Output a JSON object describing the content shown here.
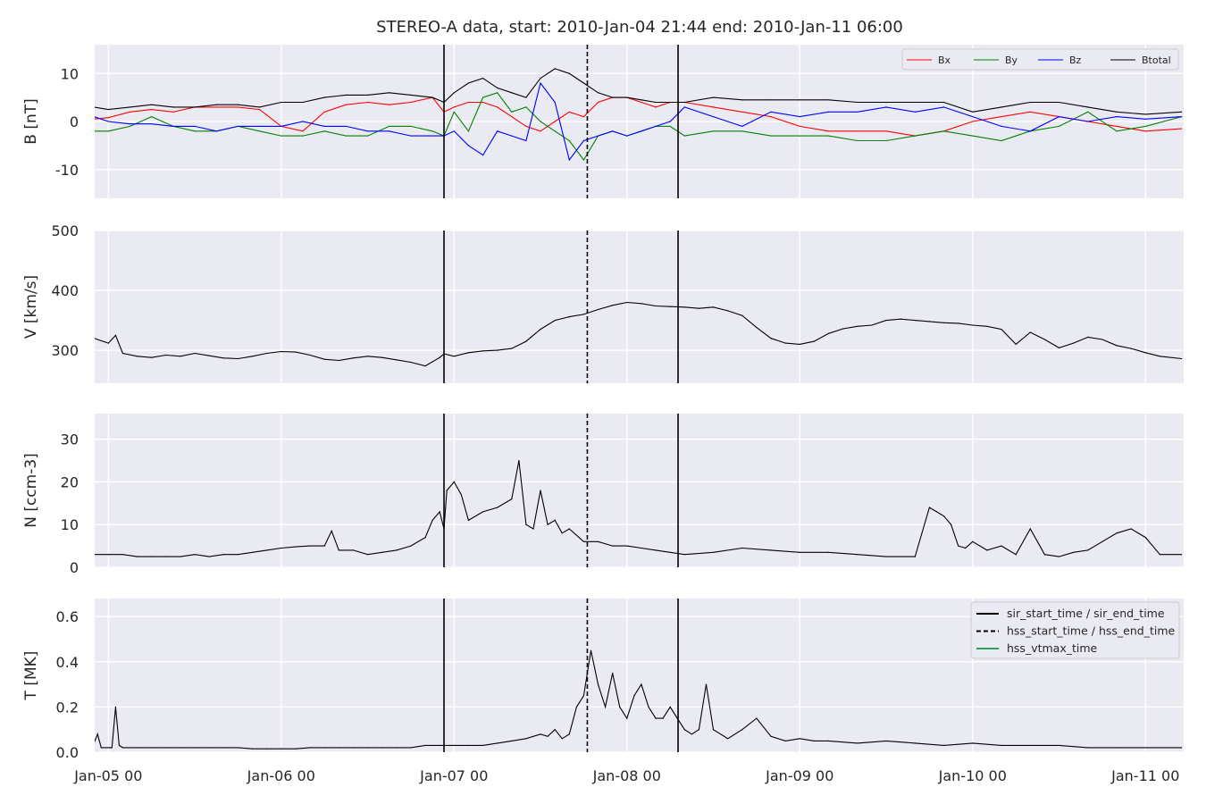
{
  "chart_data": {
    "type": "line",
    "title": "STEREO-A data, start: 2010-Jan-04 21:44  end: 2010-Jan-11 06:00",
    "x_axis": {
      "tick_labels": [
        "Jan-05 00",
        "Jan-06 00",
        "Jan-07 00",
        "Jan-08 00",
        "Jan-09 00",
        "Jan-10 00",
        "Jan-11 00"
      ],
      "tick_hours": [
        0,
        24,
        48,
        72,
        96,
        120,
        144
      ],
      "range_hours": [
        -1.9,
        149.3
      ]
    },
    "event_lines": [
      {
        "kind": "sir",
        "hour": 46.6
      },
      {
        "kind": "hss",
        "hour": 66.5
      },
      {
        "kind": "sir",
        "hour": 79.1
      }
    ],
    "panels": [
      {
        "ylabel": "B [nT]",
        "ylim": [
          -16,
          16
        ],
        "yticks": [
          -10,
          0,
          10
        ],
        "legend": {
          "placement": "upper-right",
          "entries": [
            "Bx",
            "By",
            "Bz",
            "Btotal"
          ]
        },
        "series": [
          {
            "name": "Bx",
            "color": "#ff0000",
            "x": [
              -2,
              0,
              3,
              6,
              9,
              12,
              15,
              18,
              21,
              24,
              27,
              30,
              33,
              36,
              39,
              42,
              45,
              46.6,
              48,
              50,
              52,
              54,
              56,
              58,
              60,
              62,
              64,
              66,
              68,
              70,
              72,
              74,
              76,
              78,
              80,
              84,
              88,
              92,
              96,
              100,
              104,
              108,
              112,
              116,
              120,
              124,
              128,
              132,
              136,
              140,
              144,
              149
            ],
            "y": [
              0.5,
              0.8,
              2,
              2.5,
              2,
              3,
              3,
              3,
              2.5,
              -1,
              -2,
              2,
              3.5,
              4,
              3.5,
              4,
              5,
              2,
              3,
              4,
              4,
              3,
              1,
              -1,
              -2,
              0,
              2,
              1,
              4,
              5,
              5,
              4,
              3,
              4,
              4,
              3,
              2,
              1,
              -1,
              -2,
              -2,
              -2,
              -3,
              -2,
              0,
              1,
              2,
              1,
              0,
              -1,
              -2,
              -1.5
            ]
          },
          {
            "name": "By",
            "color": "#008000",
            "x": [
              -2,
              0,
              3,
              6,
              9,
              12,
              15,
              18,
              21,
              24,
              27,
              30,
              33,
              36,
              39,
              42,
              45,
              46.6,
              48,
              50,
              52,
              54,
              56,
              58,
              60,
              62,
              64,
              66,
              68,
              70,
              72,
              74,
              76,
              78,
              80,
              84,
              88,
              92,
              96,
              100,
              104,
              108,
              112,
              116,
              120,
              124,
              128,
              132,
              136,
              140,
              144,
              149
            ],
            "y": [
              -2,
              -2,
              -1,
              1,
              -1,
              -2,
              -2,
              -1,
              -2,
              -3,
              -3,
              -2,
              -3,
              -3,
              -1,
              -1,
              -2,
              -3,
              2,
              -2,
              5,
              6,
              2,
              3,
              0,
              -2,
              -4,
              -8,
              -3,
              -2,
              -3,
              -2,
              -1,
              -1,
              -3,
              -2,
              -2,
              -3,
              -3,
              -3,
              -4,
              -4,
              -3,
              -2,
              -3,
              -4,
              -2,
              -1,
              2,
              -2,
              -1,
              1
            ]
          },
          {
            "name": "Bz",
            "color": "#0000ff",
            "x": [
              -2,
              0,
              3,
              6,
              9,
              12,
              15,
              18,
              21,
              24,
              27,
              30,
              33,
              36,
              39,
              42,
              45,
              46.6,
              48,
              50,
              52,
              54,
              56,
              58,
              60,
              62,
              64,
              66,
              68,
              70,
              72,
              74,
              76,
              78,
              80,
              84,
              88,
              92,
              96,
              100,
              104,
              108,
              112,
              116,
              120,
              124,
              128,
              132,
              136,
              140,
              144,
              149
            ],
            "y": [
              1,
              0,
              -0.5,
              -0.5,
              -1,
              -1,
              -2,
              -1,
              -1,
              -1,
              0,
              -1,
              -1,
              -2,
              -2,
              -3,
              -3,
              -3,
              -2,
              -5,
              -7,
              -2,
              -3,
              -4,
              8,
              4,
              -8,
              -4,
              -3,
              -2,
              -3,
              -2,
              -1,
              0,
              3,
              1,
              -1,
              2,
              1,
              2,
              2,
              3,
              2,
              3,
              1,
              -1,
              -2,
              1,
              0,
              1,
              0.5,
              1
            ]
          },
          {
            "name": "Btotal",
            "color": "#000000",
            "x": [
              -2,
              0,
              3,
              6,
              9,
              12,
              15,
              18,
              21,
              24,
              27,
              30,
              33,
              36,
              39,
              42,
              45,
              46.6,
              48,
              50,
              52,
              54,
              56,
              58,
              60,
              62,
              64,
              66,
              68,
              70,
              72,
              74,
              76,
              78,
              80,
              84,
              88,
              92,
              96,
              100,
              104,
              108,
              112,
              116,
              120,
              124,
              128,
              132,
              136,
              140,
              144,
              149
            ],
            "y": [
              3,
              2.5,
              3,
              3.5,
              3,
              3,
              3.5,
              3.5,
              3,
              4,
              4,
              5,
              5.5,
              5.5,
              6,
              5.5,
              5,
              4,
              6,
              8,
              9,
              7,
              6,
              5,
              9,
              11,
              10,
              8,
              6,
              5,
              5,
              4.5,
              4,
              4,
              4,
              5,
              4.5,
              4.5,
              4.5,
              4.5,
              4,
              4,
              4,
              4,
              2,
              3,
              4,
              4,
              3,
              2,
              1.5,
              2
            ]
          }
        ]
      },
      {
        "ylabel": "V [km/s]",
        "ylim": [
          245,
          500
        ],
        "yticks": [
          300,
          400,
          500
        ],
        "series": [
          {
            "name": "V",
            "color": "#000000",
            "x": [
              -2,
              0,
              1,
              2,
              4,
              6,
              8,
              10,
              12,
              14,
              16,
              18,
              20,
              22,
              24,
              26,
              28,
              30,
              32,
              34,
              36,
              38,
              40,
              42,
              44,
              46,
              46.6,
              48,
              50,
              52,
              54,
              56,
              58,
              60,
              62,
              64,
              66,
              68,
              70,
              72,
              74,
              76,
              78,
              80,
              82,
              84,
              86,
              88,
              90,
              92,
              94,
              96,
              98,
              100,
              102,
              104,
              106,
              108,
              110,
              112,
              114,
              116,
              118,
              120,
              122,
              124,
              126,
              128,
              130,
              132,
              134,
              136,
              138,
              140,
              142,
              144,
              146,
              149
            ],
            "y": [
              320,
              312,
              325,
              295,
              290,
              288,
              292,
              290,
              295,
              291,
              287,
              286,
              290,
              295,
              298,
              297,
              292,
              285,
              283,
              287,
              290,
              288,
              284,
              280,
              274,
              288,
              294,
              290,
              296,
              299,
              300,
              303,
              315,
              335,
              350,
              356,
              360,
              368,
              375,
              380,
              378,
              374,
              373,
              372,
              370,
              372,
              366,
              358,
              338,
              320,
              312,
              310,
              315,
              328,
              336,
              340,
              342,
              350,
              352,
              350,
              348,
              346,
              345,
              342,
              340,
              335,
              310,
              330,
              318,
              304,
              312,
              322,
              318,
              308,
              303,
              296,
              290,
              286
            ]
          }
        ]
      },
      {
        "ylabel": "N [ccm-3]",
        "ylim": [
          0,
          36
        ],
        "yticks": [
          0,
          10,
          20,
          30
        ],
        "series": [
          {
            "name": "N",
            "color": "#000000",
            "x": [
              -2,
              0,
              2,
              4,
              6,
              8,
              10,
              12,
              14,
              16,
              18,
              20,
              22,
              24,
              26,
              28,
              30,
              31,
              32,
              34,
              36,
              38,
              40,
              42,
              44,
              45,
              46,
              46.6,
              47,
              48,
              49,
              50,
              52,
              54,
              56,
              57,
              58,
              59,
              60,
              61,
              62,
              63,
              64,
              66,
              68,
              70,
              72,
              74,
              76,
              78,
              80,
              84,
              88,
              92,
              96,
              100,
              104,
              108,
              112,
              114,
              115,
              116,
              117,
              118,
              119,
              120,
              122,
              124,
              126,
              128,
              130,
              132,
              134,
              136,
              138,
              140,
              142,
              144,
              146,
              149
            ],
            "y": [
              3,
              3,
              3,
              2.5,
              2.5,
              2.5,
              2.5,
              3,
              2.5,
              3,
              3,
              3.5,
              4,
              4.5,
              4.8,
              5,
              5,
              8.5,
              4,
              4,
              3,
              3.5,
              4,
              5,
              7,
              11,
              13,
              9,
              18,
              20,
              17,
              11,
              13,
              14,
              16,
              25,
              10,
              9,
              18,
              10,
              11,
              8,
              9,
              6,
              6,
              5,
              5,
              4.5,
              4,
              3.5,
              3,
              3.5,
              4.5,
              4,
              3.5,
              3.5,
              3,
              2.5,
              2.5,
              14,
              13,
              12,
              10,
              5,
              4.5,
              6,
              4,
              5,
              3,
              9,
              3,
              2.5,
              3.5,
              4,
              6,
              8,
              9,
              7,
              3,
              3
            ]
          }
        ]
      },
      {
        "ylabel": "T [MK]",
        "ylim": [
          0,
          0.68
        ],
        "yticks": [
          0.0,
          0.2,
          0.4,
          0.6
        ],
        "legend": {
          "placement": "upper-right",
          "entries": [
            "sir_start_time / sir_end_time",
            "hss_start_time / hss_end_time",
            "hss_vtmax_time"
          ]
        },
        "series": [
          {
            "name": "T",
            "color": "#000000",
            "x": [
              -2,
              -1.5,
              -1,
              0,
              0.5,
              1,
              1.5,
              2,
              4,
              6,
              8,
              10,
              12,
              14,
              16,
              18,
              20,
              22,
              24,
              26,
              28,
              30,
              32,
              34,
              36,
              38,
              40,
              42,
              44,
              46,
              48,
              50,
              52,
              54,
              56,
              58,
              60,
              61,
              62,
              63,
              64,
              65,
              66,
              67,
              68,
              69,
              70,
              71,
              72,
              73,
              74,
              75,
              76,
              77,
              78,
              79,
              80,
              81,
              82,
              83,
              84,
              86,
              88,
              90,
              92,
              94,
              96,
              98,
              100,
              104,
              108,
              112,
              116,
              120,
              124,
              128,
              132,
              136,
              140,
              144,
              149
            ],
            "y": [
              0.04,
              0.08,
              0.02,
              0.02,
              0.02,
              0.2,
              0.03,
              0.02,
              0.02,
              0.02,
              0.02,
              0.02,
              0.02,
              0.02,
              0.02,
              0.02,
              0.015,
              0.015,
              0.015,
              0.015,
              0.02,
              0.02,
              0.02,
              0.02,
              0.02,
              0.02,
              0.02,
              0.02,
              0.03,
              0.03,
              0.03,
              0.03,
              0.03,
              0.04,
              0.05,
              0.06,
              0.08,
              0.07,
              0.1,
              0.06,
              0.08,
              0.2,
              0.25,
              0.45,
              0.3,
              0.2,
              0.35,
              0.2,
              0.15,
              0.25,
              0.3,
              0.2,
              0.15,
              0.15,
              0.2,
              0.15,
              0.1,
              0.08,
              0.1,
              0.3,
              0.1,
              0.06,
              0.1,
              0.15,
              0.07,
              0.05,
              0.06,
              0.05,
              0.05,
              0.04,
              0.05,
              0.04,
              0.03,
              0.04,
              0.03,
              0.03,
              0.03,
              0.02,
              0.02,
              0.02,
              0.02
            ]
          }
        ]
      }
    ]
  }
}
